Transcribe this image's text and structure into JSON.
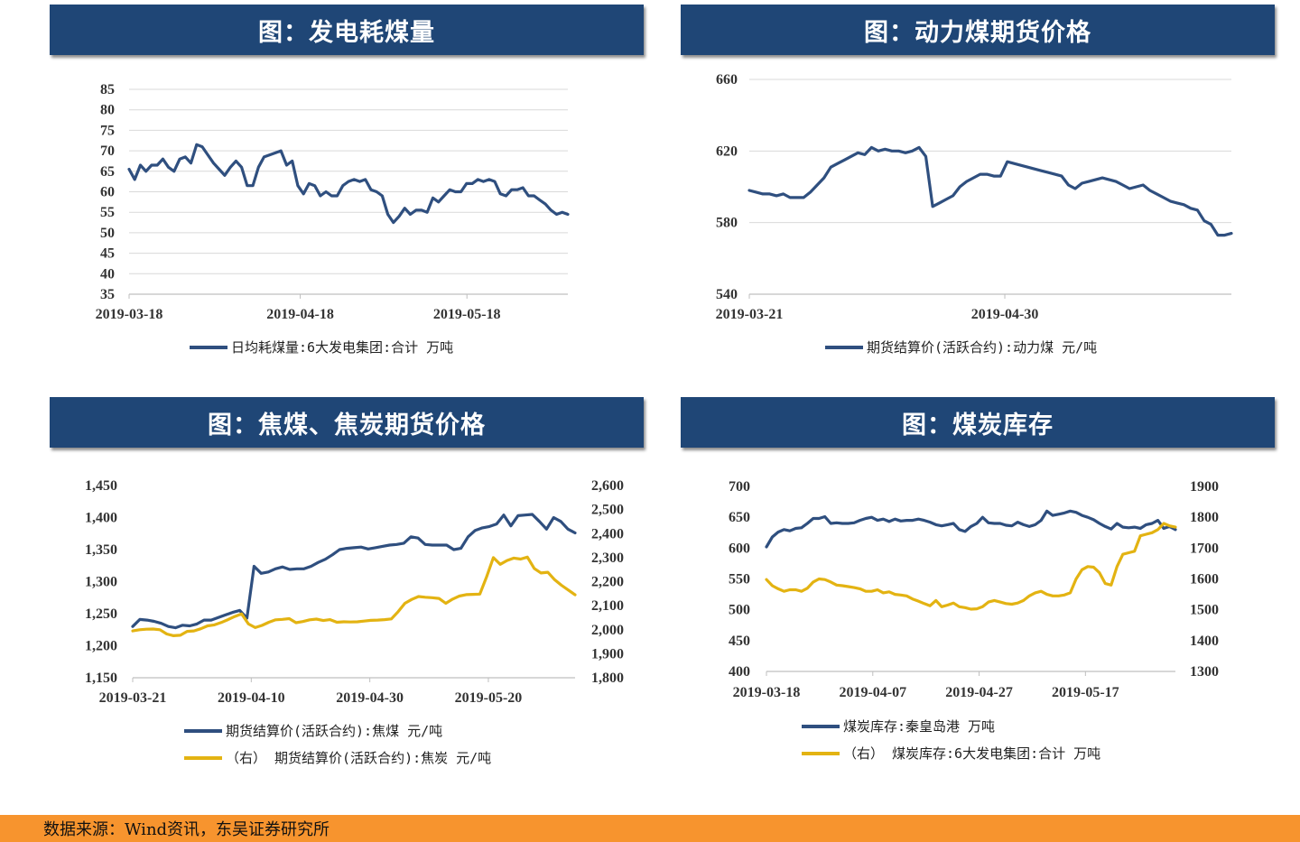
{
  "panels": {
    "p1": {
      "title": "图：发电耗煤量"
    },
    "p2": {
      "title": "图：动力煤期货价格"
    },
    "p3": {
      "title": "图：焦煤、焦炭期货价格"
    },
    "p4": {
      "title": "图：煤炭库存"
    }
  },
  "footer": {
    "source": "数据来源：Wind资讯，东吴证券研究所"
  },
  "colors": {
    "navy": "#2f4f7f",
    "gold": "#e3b312",
    "banner": "#1f4676",
    "footer": "#f7942e"
  },
  "chart_data": [
    {
      "id": "coal-consumption",
      "type": "line",
      "title": "图：发电耗煤量",
      "ylim": [
        35,
        85
      ],
      "yticks": [
        "85",
        "80",
        "75",
        "70",
        "65",
        "60",
        "55",
        "50",
        "45",
        "40",
        "35"
      ],
      "xtick_labels": [
        "2019-03-18",
        "2019-04-18",
        "2019-05-18"
      ],
      "grid": true,
      "legend_position": "bottom",
      "series": [
        {
          "name": "日均耗煤量:6大发电集团:合计  万吨",
          "color": "#2f4f7f",
          "values": [
            65.5,
            63,
            66.5,
            65,
            66.5,
            66.5,
            68,
            66,
            65,
            68,
            68.5,
            67,
            71.5,
            71,
            69,
            67,
            65.5,
            64,
            66,
            67.5,
            66,
            61.5,
            61.5,
            66,
            68.5,
            69,
            69.5,
            70,
            66.5,
            67.5,
            61.5,
            59.5,
            62,
            61.5,
            59,
            60,
            59,
            59,
            61.5,
            62.5,
            63,
            62.5,
            63,
            60.5,
            60,
            59,
            54.5,
            52.5,
            54,
            56,
            54.5,
            55.5,
            55.5,
            55,
            58.5,
            57.5,
            59,
            60.5,
            60,
            60,
            62,
            62,
            63,
            62.5,
            63,
            62.5,
            59.5,
            59,
            60.5,
            60.5,
            61,
            59,
            59,
            58,
            57,
            55.5,
            54.5,
            55,
            54.5
          ]
        }
      ]
    },
    {
      "id": "thermal-coal-futures",
      "type": "line",
      "title": "图：动力煤期货价格",
      "ylim": [
        540,
        660
      ],
      "yticks": [
        "660",
        "620",
        "580",
        "540"
      ],
      "xtick_labels": [
        "2019-03-21",
        "2019-04-30"
      ],
      "grid": true,
      "legend_position": "bottom",
      "series": [
        {
          "name": "期货结算价(活跃合约):动力煤  元/吨",
          "color": "#2f4f7f",
          "values": [
            598,
            597,
            596,
            596,
            595,
            596,
            594,
            594,
            594,
            597,
            601,
            605,
            611,
            613,
            615,
            617,
            619,
            618,
            622,
            620,
            621,
            620,
            620,
            619,
            620,
            622,
            617,
            589,
            591,
            593,
            595,
            600,
            603,
            605,
            607,
            607,
            606,
            606,
            614,
            613,
            612,
            611,
            610,
            609,
            608,
            607,
            606,
            601,
            599,
            602,
            603,
            604,
            605,
            604,
            603,
            601,
            599,
            600,
            601,
            598,
            596,
            594,
            592,
            591,
            590,
            588,
            587,
            581,
            579,
            573,
            573,
            574
          ]
        }
      ]
    },
    {
      "id": "coking-coal-coke-futures",
      "type": "line",
      "title": "图：焦煤、焦炭期货价格",
      "ylim": [
        1150,
        1450
      ],
      "y2lim": [
        1800,
        2600
      ],
      "yticks": [
        "1,450",
        "1,400",
        "1,350",
        "1,300",
        "1,250",
        "1,200",
        "1,150"
      ],
      "y2ticks": [
        "2,600",
        "2,500",
        "2,400",
        "2,300",
        "2,200",
        "2,100",
        "2,000",
        "1,900",
        "1,800"
      ],
      "xtick_labels": [
        "2019-03-21",
        "2019-04-10",
        "2019-04-30",
        "2019-05-20"
      ],
      "grid": false,
      "legend_position": "bottom",
      "series": [
        {
          "name": "期货结算价(活跃合约):焦煤  元/吨",
          "color": "#2f4f7f",
          "axis": "left",
          "values": [
            1230,
            1241,
            1240,
            1238,
            1235,
            1230,
            1228,
            1232,
            1231,
            1234,
            1240,
            1240,
            1244,
            1248,
            1252,
            1255,
            1243,
            1324,
            1313,
            1315,
            1320,
            1323,
            1319,
            1320,
            1320,
            1324,
            1330,
            1335,
            1342,
            1350,
            1352,
            1353,
            1354,
            1351,
            1353,
            1355,
            1357,
            1358,
            1360,
            1370,
            1368,
            1358,
            1357,
            1357,
            1357,
            1350,
            1352,
            1370,
            1380,
            1384,
            1386,
            1390,
            1404,
            1387,
            1403,
            1404,
            1405,
            1394,
            1382,
            1400,
            1394,
            1382,
            1376
          ]
        },
        {
          "name": "（右） 期货结算价(活跃合约):焦炭  元/吨",
          "color": "#e3b312",
          "axis": "right",
          "values": [
            1995,
            2000,
            2002,
            2003,
            2000,
            1982,
            1975,
            1977,
            1993,
            1995,
            2004,
            2016,
            2020,
            2030,
            2042,
            2055,
            2066,
            2024,
            2009,
            2018,
            2031,
            2041,
            2043,
            2046,
            2029,
            2034,
            2041,
            2044,
            2038,
            2042,
            2031,
            2033,
            2032,
            2033,
            2036,
            2039,
            2040,
            2042,
            2045,
            2075,
            2110,
            2126,
            2138,
            2135,
            2133,
            2130,
            2110,
            2127,
            2140,
            2146,
            2147,
            2148,
            2220,
            2300,
            2272,
            2288,
            2298,
            2294,
            2302,
            2255,
            2236,
            2239,
            2208,
            2185,
            2165,
            2145
          ]
        }
      ]
    },
    {
      "id": "coal-inventory",
      "type": "line",
      "title": "图：煤炭库存",
      "ylim": [
        400,
        700
      ],
      "y2lim": [
        1300,
        1900
      ],
      "yticks": [
        "700",
        "650",
        "600",
        "550",
        "500",
        "450",
        "400"
      ],
      "y2ticks": [
        "1900",
        "1800",
        "1700",
        "1600",
        "1500",
        "1400",
        "1300"
      ],
      "xtick_labels": [
        "2019-03-18",
        "2019-04-07",
        "2019-04-27",
        "2019-05-17"
      ],
      "grid": false,
      "legend_position": "bottom",
      "series": [
        {
          "name": "煤炭库存:秦皇岛港  万吨",
          "color": "#2f4f7f",
          "axis": "left",
          "values": [
            602,
            618,
            626,
            630,
            628,
            632,
            633,
            640,
            648,
            648,
            651,
            640,
            641,
            640,
            640,
            641,
            645,
            648,
            650,
            645,
            647,
            643,
            647,
            644,
            645,
            645,
            647,
            645,
            642,
            638,
            636,
            638,
            640,
            630,
            627,
            635,
            640,
            650,
            641,
            640,
            640,
            637,
            636,
            642,
            638,
            635,
            638,
            645,
            660,
            653,
            655,
            657,
            660,
            658,
            653,
            650,
            646,
            640,
            635,
            631,
            640,
            634,
            633,
            634,
            632,
            638,
            640,
            645,
            632,
            635,
            630
          ]
        },
        {
          "name": "（右） 煤炭库存:6大发电集团:合计  万吨",
          "color": "#e3b312",
          "axis": "right",
          "values": [
            1598,
            1578,
            1568,
            1560,
            1565,
            1565,
            1560,
            1570,
            1590,
            1600,
            1598,
            1590,
            1580,
            1578,
            1575,
            1572,
            1568,
            1560,
            1560,
            1565,
            1555,
            1558,
            1550,
            1548,
            1545,
            1535,
            1528,
            1520,
            1513,
            1530,
            1510,
            1515,
            1522,
            1510,
            1507,
            1502,
            1503,
            1510,
            1525,
            1530,
            1525,
            1520,
            1518,
            1522,
            1530,
            1545,
            1555,
            1560,
            1550,
            1545,
            1545,
            1548,
            1555,
            1600,
            1630,
            1640,
            1638,
            1620,
            1585,
            1580,
            1640,
            1680,
            1685,
            1690,
            1740,
            1745,
            1750,
            1760,
            1780,
            1772,
            1768
          ]
        }
      ]
    }
  ]
}
